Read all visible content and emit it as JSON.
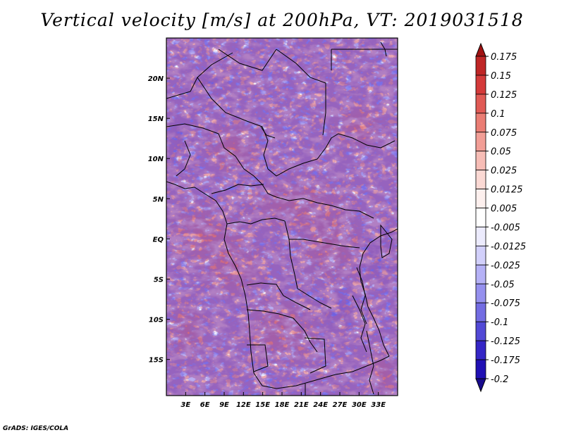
{
  "chart_data": {
    "type": "heatmap",
    "title": "Vertical velocity [m/s] at 200hPa, VT: 2019031518",
    "variable": "Vertical velocity",
    "units": "m/s",
    "level": "200hPa",
    "valid_time": "2019031518",
    "xlim": [
      0,
      36
    ],
    "ylim": [
      -19.5,
      25
    ],
    "x_ticks": [
      {
        "value": 3,
        "label": "3E"
      },
      {
        "value": 6,
        "label": "6E"
      },
      {
        "value": 9,
        "label": "9E"
      },
      {
        "value": 12,
        "label": "12E"
      },
      {
        "value": 15,
        "label": "15E"
      },
      {
        "value": 18,
        "label": "18E"
      },
      {
        "value": 21,
        "label": "21E"
      },
      {
        "value": 24,
        "label": "24E"
      },
      {
        "value": 27,
        "label": "27E"
      },
      {
        "value": 30,
        "label": "30E"
      },
      {
        "value": 33,
        "label": "33E"
      }
    ],
    "y_ticks": [
      {
        "value": 20,
        "label": "20N"
      },
      {
        "value": 15,
        "label": "15N"
      },
      {
        "value": 10,
        "label": "10N"
      },
      {
        "value": 5,
        "label": "5N"
      },
      {
        "value": 0,
        "label": "EQ"
      },
      {
        "value": -5,
        "label": "5S"
      },
      {
        "value": -10,
        "label": "10S"
      },
      {
        "value": -15,
        "label": "15S"
      }
    ],
    "colorbar": {
      "levels": [
        "0.175",
        "0.15",
        "0.125",
        "0.1",
        "0.075",
        "0.05",
        "0.025",
        "0.0125",
        "0.005",
        "-0.005",
        "-0.0125",
        "-0.025",
        "-0.05",
        "-0.075",
        "-0.1",
        "-0.125",
        "-0.175",
        "-0.2"
      ],
      "colors": [
        "#a01212",
        "#bf2626",
        "#d43a3a",
        "#e05a55",
        "#ea7d74",
        "#f29e96",
        "#f7bdb6",
        "#fbd9d4",
        "#fdf0ee",
        "#ffffff",
        "#ecebfd",
        "#d2d0fb",
        "#b5b1f6",
        "#9590ee",
        "#736ce2",
        "#5249d6",
        "#3526c6",
        "#2010b4",
        "#170a8c"
      ]
    }
  },
  "credit": "GrADS: IGES/COLA"
}
